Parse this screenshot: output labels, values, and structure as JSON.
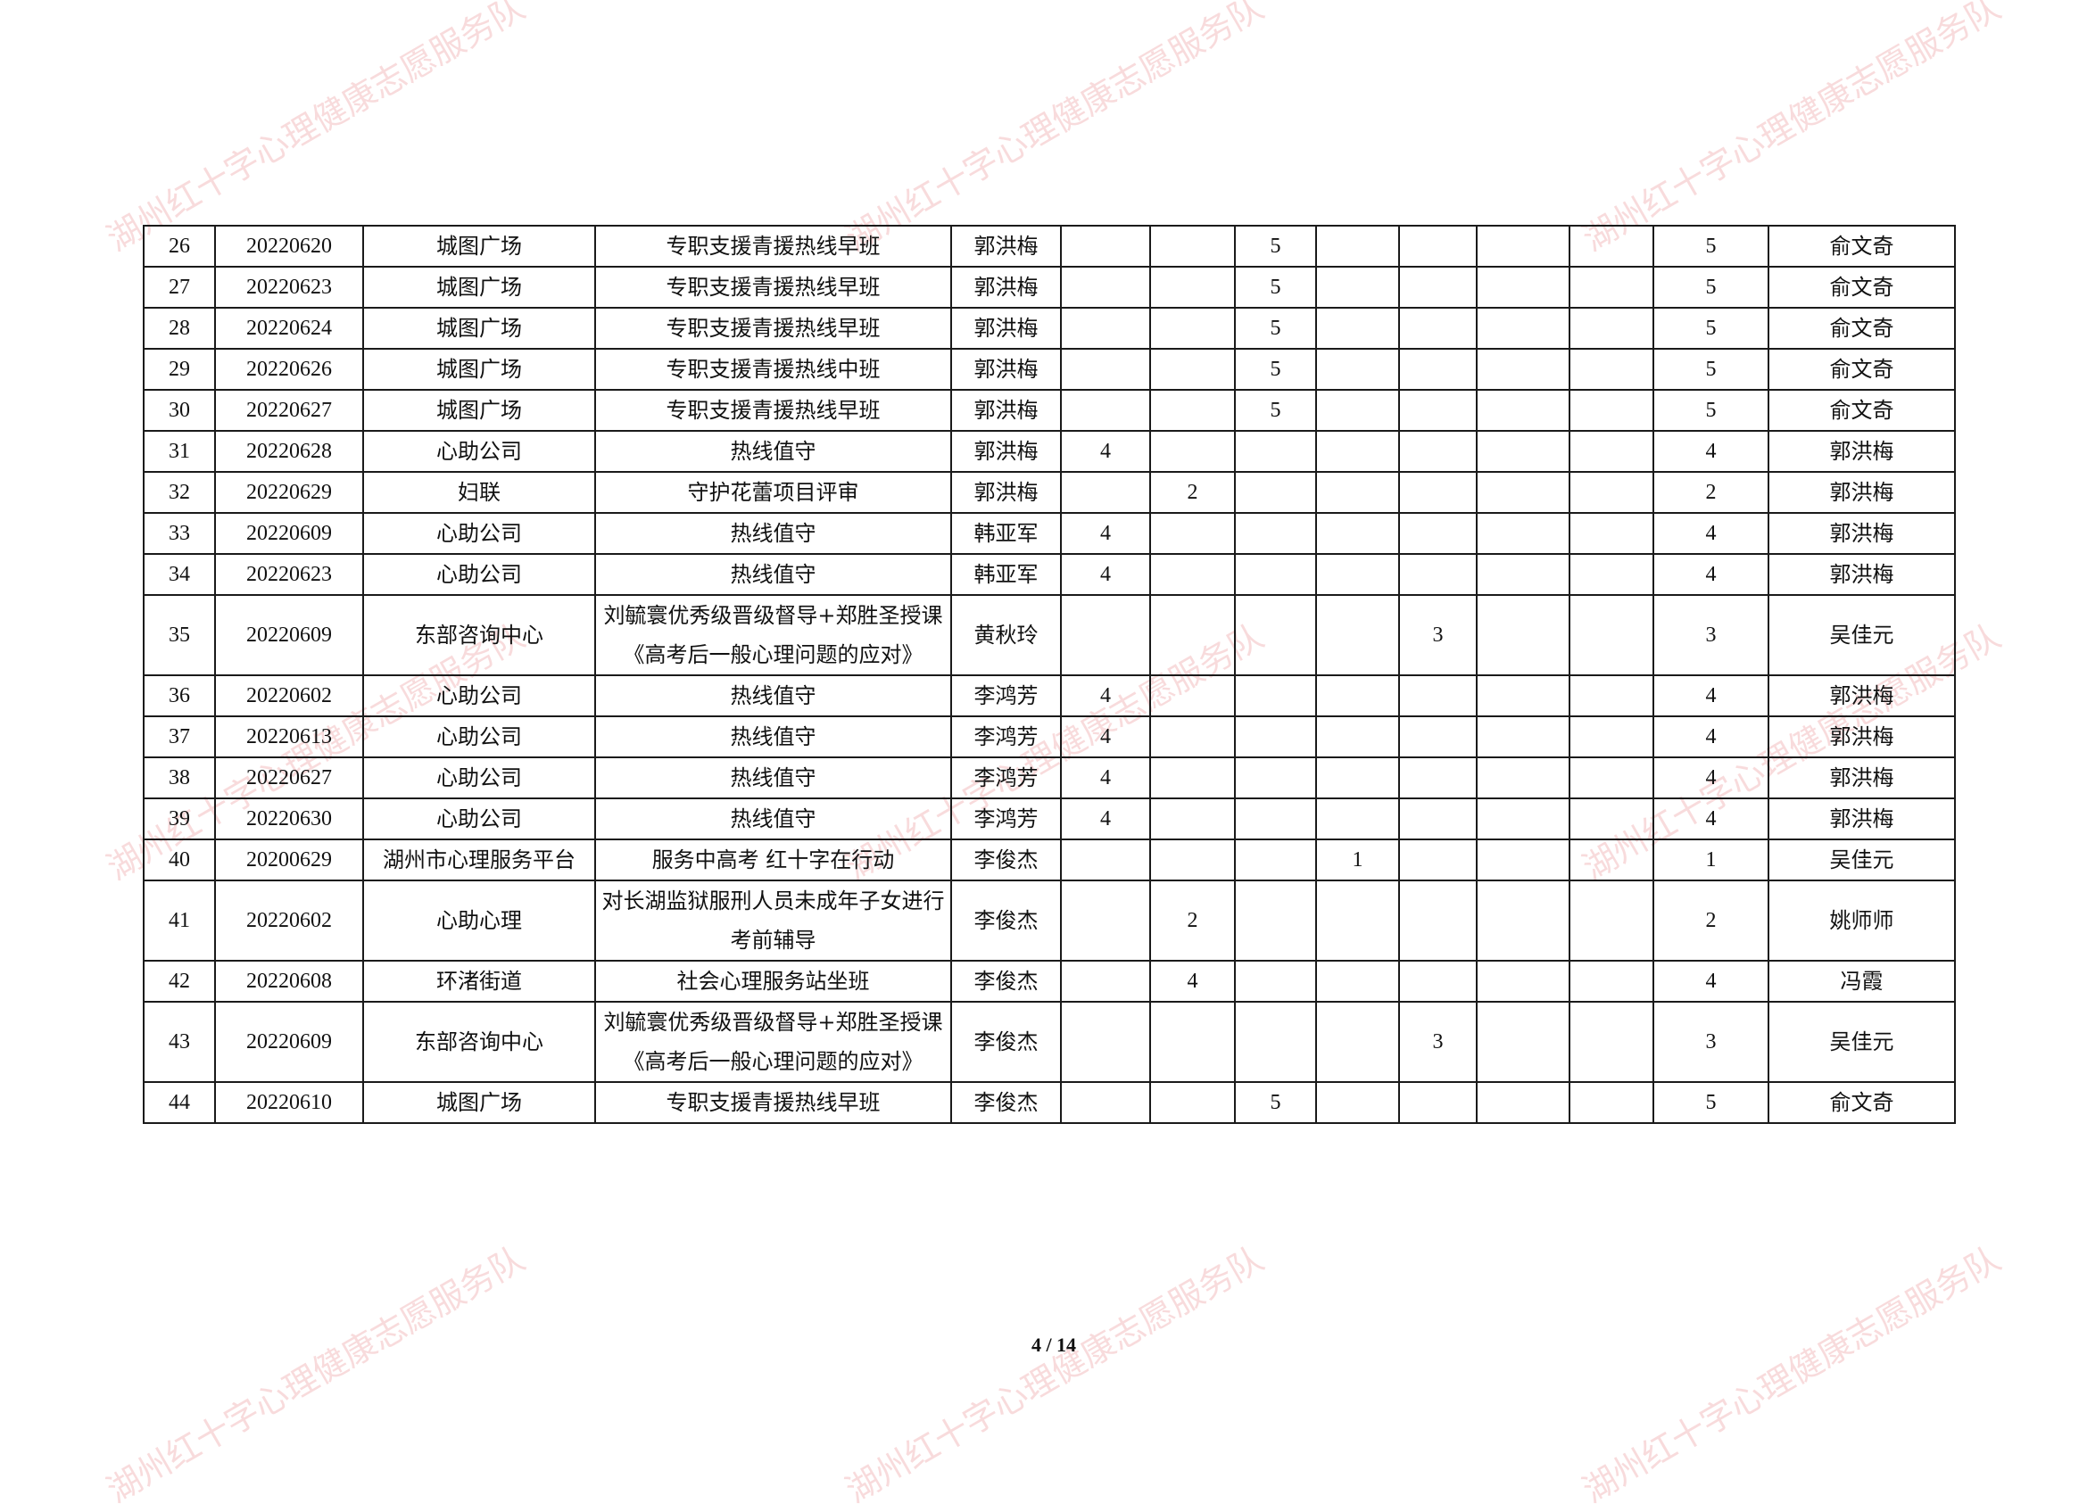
{
  "watermark": "湖州红十字心理健康志愿服务队",
  "footer": {
    "page": "4 / 14"
  },
  "rows": [
    {
      "no": "26",
      "date": "20220620",
      "place": "城图广场",
      "activity": "专职支援青援热线早班",
      "name": "郭洪梅",
      "c": [
        "",
        "",
        "5",
        "",
        "",
        "",
        ""
      ],
      "total": "5",
      "reviewer": "俞文奇"
    },
    {
      "no": "27",
      "date": "20220623",
      "place": "城图广场",
      "activity": "专职支援青援热线早班",
      "name": "郭洪梅",
      "c": [
        "",
        "",
        "5",
        "",
        "",
        "",
        ""
      ],
      "total": "5",
      "reviewer": "俞文奇"
    },
    {
      "no": "28",
      "date": "20220624",
      "place": "城图广场",
      "activity": "专职支援青援热线早班",
      "name": "郭洪梅",
      "c": [
        "",
        "",
        "5",
        "",
        "",
        "",
        ""
      ],
      "total": "5",
      "reviewer": "俞文奇"
    },
    {
      "no": "29",
      "date": "20220626",
      "place": "城图广场",
      "activity": "专职支援青援热线中班",
      "name": "郭洪梅",
      "c": [
        "",
        "",
        "5",
        "",
        "",
        "",
        ""
      ],
      "total": "5",
      "reviewer": "俞文奇"
    },
    {
      "no": "30",
      "date": "20220627",
      "place": "城图广场",
      "activity": "专职支援青援热线早班",
      "name": "郭洪梅",
      "c": [
        "",
        "",
        "5",
        "",
        "",
        "",
        ""
      ],
      "total": "5",
      "reviewer": "俞文奇"
    },
    {
      "no": "31",
      "date": "20220628",
      "place": "心助公司",
      "activity": "热线值守",
      "name": "郭洪梅",
      "c": [
        "4",
        "",
        "",
        "",
        "",
        "",
        ""
      ],
      "total": "4",
      "reviewer": "郭洪梅"
    },
    {
      "no": "32",
      "date": "20220629",
      "place": "妇联",
      "activity": "守护花蕾项目评审",
      "name": "郭洪梅",
      "c": [
        "",
        "2",
        "",
        "",
        "",
        "",
        ""
      ],
      "total": "2",
      "reviewer": "郭洪梅"
    },
    {
      "no": "33",
      "date": "20220609",
      "place": "心助公司",
      "activity": "热线值守",
      "name": "韩亚军",
      "c": [
        "4",
        "",
        "",
        "",
        "",
        "",
        ""
      ],
      "total": "4",
      "reviewer": "郭洪梅"
    },
    {
      "no": "34",
      "date": "20220623",
      "place": "心助公司",
      "activity": "热线值守",
      "name": "韩亚军",
      "c": [
        "4",
        "",
        "",
        "",
        "",
        "",
        ""
      ],
      "total": "4",
      "reviewer": "郭洪梅"
    },
    {
      "no": "35",
      "date": "20220609",
      "place": "东部咨询中心",
      "activity": "刘毓寰优秀级晋级督导+郑胜圣授课《高考后一般心理问题的应对》",
      "name": "黄秋玲",
      "c": [
        "",
        "",
        "",
        "",
        "3",
        "",
        ""
      ],
      "total": "3",
      "reviewer": "吴佳元"
    },
    {
      "no": "36",
      "date": "20220602",
      "place": "心助公司",
      "activity": "热线值守",
      "name": "李鸿芳",
      "c": [
        "4",
        "",
        "",
        "",
        "",
        "",
        ""
      ],
      "total": "4",
      "reviewer": "郭洪梅"
    },
    {
      "no": "37",
      "date": "20220613",
      "place": "心助公司",
      "activity": "热线值守",
      "name": "李鸿芳",
      "c": [
        "4",
        "",
        "",
        "",
        "",
        "",
        ""
      ],
      "total": "4",
      "reviewer": "郭洪梅"
    },
    {
      "no": "38",
      "date": "20220627",
      "place": "心助公司",
      "activity": "热线值守",
      "name": "李鸿芳",
      "c": [
        "4",
        "",
        "",
        "",
        "",
        "",
        ""
      ],
      "total": "4",
      "reviewer": "郭洪梅"
    },
    {
      "no": "39",
      "date": "20220630",
      "place": "心助公司",
      "activity": "热线值守",
      "name": "李鸿芳",
      "c": [
        "4",
        "",
        "",
        "",
        "",
        "",
        ""
      ],
      "total": "4",
      "reviewer": "郭洪梅"
    },
    {
      "no": "40",
      "date": "20200629",
      "place": "湖州市心理服务平台",
      "activity": "服务中高考  红十字在行动",
      "name": "李俊杰",
      "c": [
        "",
        "",
        "",
        "1",
        "",
        "",
        ""
      ],
      "total": "1",
      "reviewer": "吴佳元"
    },
    {
      "no": "41",
      "date": "20220602",
      "place": "心助心理",
      "activity": "对长湖监狱服刑人员未成年子女进行考前辅导",
      "name": "李俊杰",
      "c": [
        "",
        "2",
        "",
        "",
        "",
        "",
        ""
      ],
      "total": "2",
      "reviewer": "姚师师"
    },
    {
      "no": "42",
      "date": "20220608",
      "place": "环渚街道",
      "activity": "社会心理服务站坐班",
      "name": "李俊杰",
      "c": [
        "",
        "4",
        "",
        "",
        "",
        "",
        ""
      ],
      "total": "4",
      "reviewer": "冯霞"
    },
    {
      "no": "43",
      "date": "20220609",
      "place": "东部咨询中心",
      "activity": "刘毓寰优秀级晋级督导+郑胜圣授课《高考后一般心理问题的应对》",
      "name": "李俊杰",
      "c": [
        "",
        "",
        "",
        "",
        "3",
        "",
        ""
      ],
      "total": "3",
      "reviewer": "吴佳元"
    },
    {
      "no": "44",
      "date": "20220610",
      "place": "城图广场",
      "activity": "专职支援青援热线早班",
      "name": "李俊杰",
      "c": [
        "",
        "",
        "5",
        "",
        "",
        "",
        ""
      ],
      "total": "5",
      "reviewer": "俞文奇"
    }
  ]
}
